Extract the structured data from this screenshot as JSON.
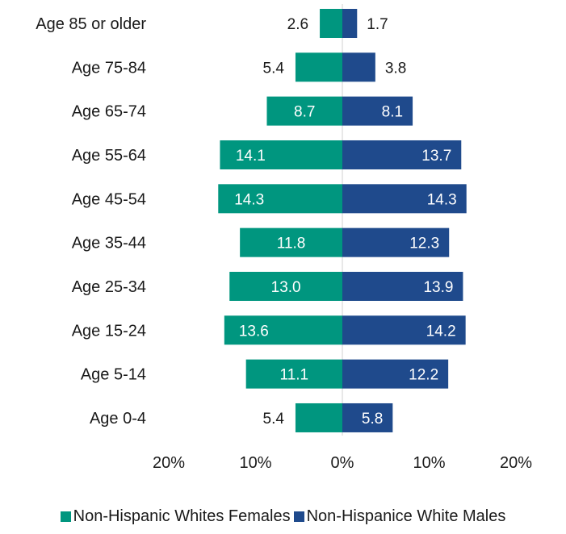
{
  "chart_data": {
    "type": "bar",
    "orientation": "horizontal-diverging",
    "categories": [
      "Age 85 or older",
      "Age 75-84",
      "Age 65-74",
      "Age 55-64",
      "Age 45-54",
      "Age 35-44",
      "Age 25-34",
      "Age 15-24",
      "Age 5-14",
      "Age 0-4"
    ],
    "series": [
      {
        "name": "Non-Hispanic Whites Females",
        "color": "#00967f",
        "side": "left",
        "values": [
          2.6,
          5.4,
          8.7,
          14.1,
          14.3,
          11.8,
          13.0,
          13.6,
          11.1,
          5.4
        ],
        "labels": [
          "2.6",
          "5.4",
          "8.7",
          "14.1",
          "14.3",
          "11.8",
          "13.0",
          "13.6",
          "11.1",
          "5.4"
        ]
      },
      {
        "name": "Non-Hispanice White Males",
        "color": "#1f4a8c",
        "side": "right",
        "values": [
          1.7,
          3.8,
          8.1,
          13.7,
          14.3,
          12.3,
          13.9,
          14.2,
          12.2,
          5.8
        ],
        "labels": [
          "1.7",
          "3.8",
          "8.1",
          "13.7",
          "14.3",
          "12.3",
          "13.9",
          "14.2",
          "12.2",
          "5.8"
        ]
      }
    ],
    "xlim": [
      -20,
      20
    ],
    "x_ticks": [
      "20%",
      "10%",
      "0%",
      "10%",
      "20%"
    ],
    "x_tick_values": [
      -20,
      -10,
      0,
      10,
      20
    ],
    "grid": false,
    "legend_position": "bottom"
  }
}
